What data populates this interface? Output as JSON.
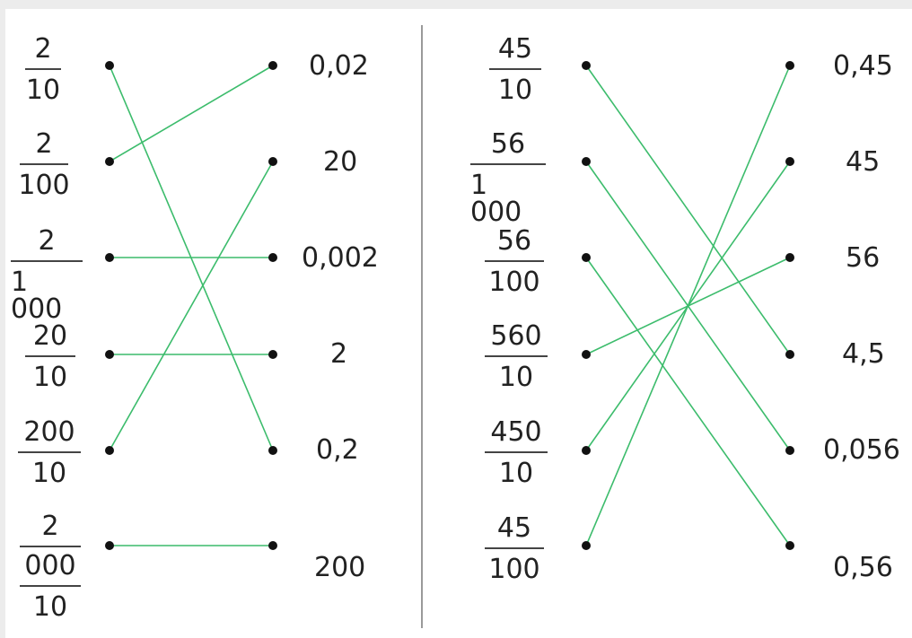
{
  "exercises": [
    {
      "fractions": [
        {
          "num": "2",
          "den": "10"
        },
        {
          "num": "2",
          "den": "100"
        },
        {
          "num": "2",
          "den": "1 000"
        },
        {
          "num": "20",
          "den": "10"
        },
        {
          "num": "200",
          "den": "10"
        },
        {
          "num": "2",
          "mid": "000",
          "den": "10"
        }
      ],
      "values": [
        "0,02",
        "20",
        "0,002",
        "2",
        "0,2",
        "200"
      ],
      "links": [
        [
          0,
          4
        ],
        [
          1,
          0
        ],
        [
          2,
          2
        ],
        [
          3,
          3
        ],
        [
          4,
          1
        ],
        [
          5,
          5
        ]
      ]
    },
    {
      "fractions": [
        {
          "num": "45",
          "den": "10"
        },
        {
          "num": "56",
          "den": "1 000"
        },
        {
          "num": "56",
          "den": "100"
        },
        {
          "num": "560",
          "den": "10"
        },
        {
          "num": "450",
          "den": "10"
        },
        {
          "num": "45",
          "den": "100"
        }
      ],
      "values": [
        "0,45",
        "45",
        "56",
        "4,5",
        "0,056",
        "0,56"
      ],
      "links": [
        [
          0,
          3
        ],
        [
          1,
          4
        ],
        [
          2,
          5
        ],
        [
          3,
          2
        ],
        [
          4,
          1
        ],
        [
          5,
          0
        ]
      ]
    }
  ],
  "colors": {
    "link": "#3cbc6c",
    "dot": "#111111",
    "text": "#222222",
    "divider": "#9a9a9a"
  }
}
